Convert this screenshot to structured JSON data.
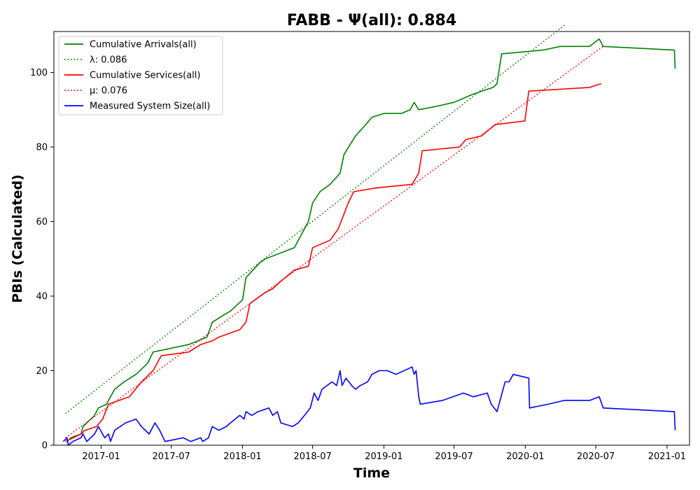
{
  "chart_data": {
    "type": "line",
    "title": "FABB -  Ψ(all): 0.884",
    "xlabel": "Time",
    "ylabel": "PBIs (Calculated)",
    "xlim": [
      "2016-09-01",
      "2021-02-28"
    ],
    "ylim": [
      0,
      111
    ],
    "x_ticks": [
      "2017-01",
      "2017-07",
      "2018-01",
      "2018-07",
      "2019-01",
      "2019-07",
      "2020-01",
      "2020-07",
      "2021-01"
    ],
    "y_ticks": [
      0,
      20,
      40,
      60,
      80,
      100
    ],
    "grid": false,
    "legend": {
      "placement": "top-left",
      "entries": [
        {
          "label": "Cumulative Arrivals(all)",
          "color": "#008000",
          "style": "solid"
        },
        {
          "label": "λ: 0.086",
          "color": "#008000",
          "style": "dotted"
        },
        {
          "label": "Cumulative Services(all)",
          "color": "#ff0000",
          "style": "solid"
        },
        {
          "label": "μ: 0.076",
          "color": "#ff0000",
          "style": "dotted"
        },
        {
          "label": "Measured System Size(all)",
          "color": "#0000ff",
          "style": "solid"
        }
      ]
    },
    "series": [
      {
        "name": "Cumulative Arrivals(all)",
        "color": "#008000",
        "style": "solid",
        "points": [
          [
            "2016-10-05",
            1
          ],
          [
            "2016-10-15",
            2
          ],
          [
            "2016-11-10",
            3
          ],
          [
            "2016-11-15",
            5
          ],
          [
            "2016-12-15",
            8
          ],
          [
            "2016-12-25",
            10
          ],
          [
            "2017-01-15",
            11
          ],
          [
            "2017-01-25",
            13
          ],
          [
            "2017-02-05",
            15
          ],
          [
            "2017-03-01",
            17
          ],
          [
            "2017-04-01",
            19
          ],
          [
            "2017-05-01",
            22
          ],
          [
            "2017-05-15",
            25
          ],
          [
            "2017-08-15",
            27
          ],
          [
            "2017-10-01",
            29
          ],
          [
            "2017-10-15",
            33
          ],
          [
            "2017-11-15",
            35
          ],
          [
            "2017-12-01",
            36
          ],
          [
            "2018-01-01",
            39
          ],
          [
            "2018-01-10",
            45
          ],
          [
            "2018-02-15",
            49
          ],
          [
            "2018-03-01",
            50
          ],
          [
            "2018-05-15",
            53
          ],
          [
            "2018-06-20",
            60
          ],
          [
            "2018-07-01",
            65
          ],
          [
            "2018-07-20",
            68
          ],
          [
            "2018-08-15",
            70
          ],
          [
            "2018-09-10",
            73
          ],
          [
            "2018-09-20",
            78
          ],
          [
            "2018-10-20",
            83
          ],
          [
            "2018-11-15",
            86
          ],
          [
            "2018-12-01",
            88
          ],
          [
            "2019-01-01",
            89
          ],
          [
            "2019-02-15",
            89
          ],
          [
            "2019-03-10",
            90
          ],
          [
            "2019-03-20",
            92
          ],
          [
            "2019-04-01",
            90
          ],
          [
            "2019-05-20",
            91
          ],
          [
            "2019-07-01",
            92
          ],
          [
            "2019-08-15",
            94
          ],
          [
            "2019-09-10",
            95
          ],
          [
            "2019-10-10",
            96
          ],
          [
            "2019-10-20",
            97
          ],
          [
            "2019-11-01",
            105
          ],
          [
            "2020-02-15",
            106
          ],
          [
            "2020-04-01",
            107
          ],
          [
            "2020-06-15",
            107
          ],
          [
            "2020-07-10",
            109
          ],
          [
            "2020-07-20",
            107
          ],
          [
            "2021-01-20",
            106
          ],
          [
            "2021-01-22",
            101
          ]
        ]
      },
      {
        "name": "λ: 0.086",
        "color": "#008000",
        "style": "dotted",
        "points": [
          [
            "2016-10-01",
            8.5
          ],
          [
            "2020-04-15",
            113
          ]
        ]
      },
      {
        "name": "Cumulative Services(all)",
        "color": "#ff0000",
        "style": "solid",
        "points": [
          [
            "2016-10-01",
            1
          ],
          [
            "2016-11-10",
            3
          ],
          [
            "2016-11-20",
            4
          ],
          [
            "2016-12-20",
            5
          ],
          [
            "2017-01-05",
            7
          ],
          [
            "2017-01-20",
            11
          ],
          [
            "2017-03-15",
            13
          ],
          [
            "2017-04-15",
            17
          ],
          [
            "2017-05-15",
            20
          ],
          [
            "2017-06-05",
            24
          ],
          [
            "2017-08-15",
            25
          ],
          [
            "2017-09-15",
            27
          ],
          [
            "2017-10-15",
            28
          ],
          [
            "2017-11-01",
            29
          ],
          [
            "2017-12-25",
            31
          ],
          [
            "2018-01-10",
            33
          ],
          [
            "2018-01-20",
            38
          ],
          [
            "2018-03-01",
            41
          ],
          [
            "2018-03-20",
            42
          ],
          [
            "2018-04-10",
            44
          ],
          [
            "2018-05-15",
            47
          ],
          [
            "2018-06-20",
            48
          ],
          [
            "2018-07-01",
            53
          ],
          [
            "2018-08-15",
            55
          ],
          [
            "2018-09-05",
            58
          ],
          [
            "2018-10-01",
            65
          ],
          [
            "2018-10-15",
            68
          ],
          [
            "2018-12-10",
            69
          ],
          [
            "2019-03-15",
            70
          ],
          [
            "2019-04-01",
            73
          ],
          [
            "2019-04-10",
            79
          ],
          [
            "2019-07-15",
            80
          ],
          [
            "2019-08-01",
            82
          ],
          [
            "2019-09-10",
            83
          ],
          [
            "2019-10-15",
            86
          ],
          [
            "2019-12-31",
            87
          ],
          [
            "2020-01-10",
            95
          ],
          [
            "2020-06-15",
            96
          ],
          [
            "2020-07-15",
            97
          ]
        ]
      },
      {
        "name": "μ: 0.076",
        "color": "#ff0000",
        "style": "dotted",
        "points": [
          [
            "2016-10-01",
            2
          ],
          [
            "2020-07-20",
            107
          ]
        ]
      },
      {
        "name": "Measured System Size(all)",
        "color": "#0000ff",
        "style": "solid",
        "points": [
          [
            "2016-09-25",
            1
          ],
          [
            "2016-10-05",
            2
          ],
          [
            "2016-10-08",
            0
          ],
          [
            "2016-10-20",
            1
          ],
          [
            "2016-11-10",
            2
          ],
          [
            "2016-11-15",
            3
          ],
          [
            "2016-11-25",
            1
          ],
          [
            "2016-12-15",
            3
          ],
          [
            "2016-12-25",
            5
          ],
          [
            "2017-01-10",
            2
          ],
          [
            "2017-01-20",
            3
          ],
          [
            "2017-01-25",
            1
          ],
          [
            "2017-02-05",
            4
          ],
          [
            "2017-03-05",
            6
          ],
          [
            "2017-04-01",
            7
          ],
          [
            "2017-04-15",
            5
          ],
          [
            "2017-05-05",
            3
          ],
          [
            "2017-05-20",
            6
          ],
          [
            "2017-06-01",
            4
          ],
          [
            "2017-06-15",
            1
          ],
          [
            "2017-08-01",
            2
          ],
          [
            "2017-08-20",
            1
          ],
          [
            "2017-09-15",
            2
          ],
          [
            "2017-09-20",
            1
          ],
          [
            "2017-10-05",
            2
          ],
          [
            "2017-10-15",
            5
          ],
          [
            "2017-11-01",
            4
          ],
          [
            "2017-11-20",
            5
          ],
          [
            "2017-12-01",
            6
          ],
          [
            "2017-12-25",
            8
          ],
          [
            "2018-01-05",
            7
          ],
          [
            "2018-01-10",
            9
          ],
          [
            "2018-01-25",
            8
          ],
          [
            "2018-02-10",
            9
          ],
          [
            "2018-03-10",
            10
          ],
          [
            "2018-03-20",
            8
          ],
          [
            "2018-04-01",
            9
          ],
          [
            "2018-04-10",
            6
          ],
          [
            "2018-05-10",
            5
          ],
          [
            "2018-05-25",
            6
          ],
          [
            "2018-06-10",
            8
          ],
          [
            "2018-06-25",
            10
          ],
          [
            "2018-07-05",
            14
          ],
          [
            "2018-07-15",
            12
          ],
          [
            "2018-07-25",
            15
          ],
          [
            "2018-08-20",
            17
          ],
          [
            "2018-09-01",
            16
          ],
          [
            "2018-09-10",
            20
          ],
          [
            "2018-09-15",
            16
          ],
          [
            "2018-09-25",
            18
          ],
          [
            "2018-10-10",
            16
          ],
          [
            "2018-10-20",
            15
          ],
          [
            "2018-11-01",
            16
          ],
          [
            "2018-11-20",
            17
          ],
          [
            "2018-12-01",
            19
          ],
          [
            "2018-12-20",
            20
          ],
          [
            "2019-01-10",
            20
          ],
          [
            "2019-02-01",
            19
          ],
          [
            "2019-03-15",
            21
          ],
          [
            "2019-03-20",
            19
          ],
          [
            "2019-03-25",
            20
          ],
          [
            "2019-04-01",
            13
          ],
          [
            "2019-04-05",
            11
          ],
          [
            "2019-06-01",
            12
          ],
          [
            "2019-07-25",
            14
          ],
          [
            "2019-08-20",
            13
          ],
          [
            "2019-09-25",
            14
          ],
          [
            "2019-10-05",
            11
          ],
          [
            "2019-10-20",
            9
          ],
          [
            "2019-11-10",
            17
          ],
          [
            "2019-11-20",
            17
          ],
          [
            "2019-12-01",
            19
          ],
          [
            "2020-01-10",
            18
          ],
          [
            "2020-01-12",
            10
          ],
          [
            "2020-03-01",
            11
          ],
          [
            "2020-04-10",
            12
          ],
          [
            "2020-06-15",
            12
          ],
          [
            "2020-07-10",
            13
          ],
          [
            "2020-07-20",
            10
          ],
          [
            "2021-01-20",
            9
          ],
          [
            "2021-01-22",
            4
          ]
        ]
      }
    ]
  }
}
